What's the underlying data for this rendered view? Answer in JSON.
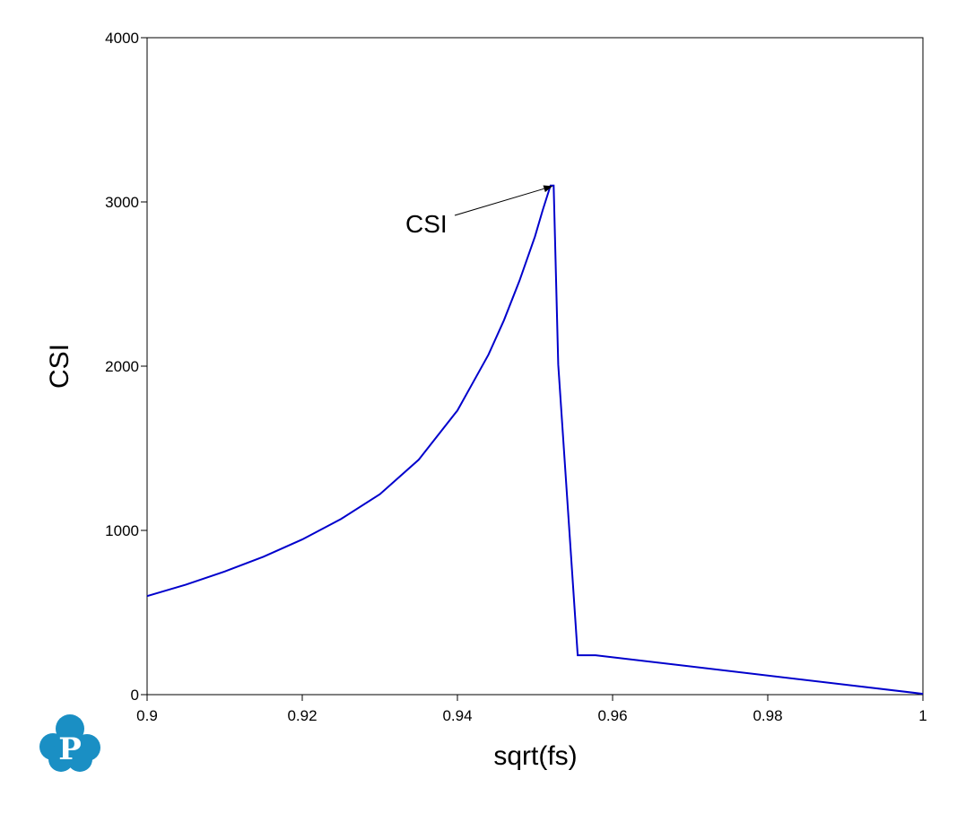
{
  "chart_data": {
    "type": "line",
    "xlabel": "sqrt(fs)",
    "ylabel": "CSI",
    "xlim": [
      0.9,
      1.0
    ],
    "ylim": [
      0,
      4000
    ],
    "xticks": [
      0.9,
      0.92,
      0.94,
      0.96,
      0.98,
      1.0
    ],
    "xtick_labels": [
      "0.9",
      "0.92",
      "0.94",
      "0.96",
      "0.98",
      "1"
    ],
    "yticks": [
      0,
      1000,
      2000,
      3000,
      4000
    ],
    "ytick_labels": [
      "0",
      "1000",
      "2000",
      "3000",
      "4000"
    ],
    "grid": false,
    "series": [
      {
        "color": "#0000cc",
        "x": [
          0.9,
          0.905,
          0.91,
          0.915,
          0.92,
          0.925,
          0.93,
          0.935,
          0.94,
          0.942,
          0.944,
          0.946,
          0.948,
          0.95,
          0.951,
          0.952,
          0.9524,
          0.953,
          0.9555,
          0.9578,
          1.0
        ],
        "y": [
          600,
          670,
          750,
          840,
          945,
          1070,
          1220,
          1430,
          1730,
          1900,
          2070,
          2280,
          2520,
          2790,
          2950,
          3100,
          3100,
          2010,
          240,
          240,
          5
        ]
      }
    ],
    "annotations": [
      {
        "text": "CSI",
        "points_to": {
          "x": 0.9524,
          "y": 3100
        }
      }
    ]
  },
  "logo": {
    "letter": "P",
    "color": "#1a8fc4"
  }
}
